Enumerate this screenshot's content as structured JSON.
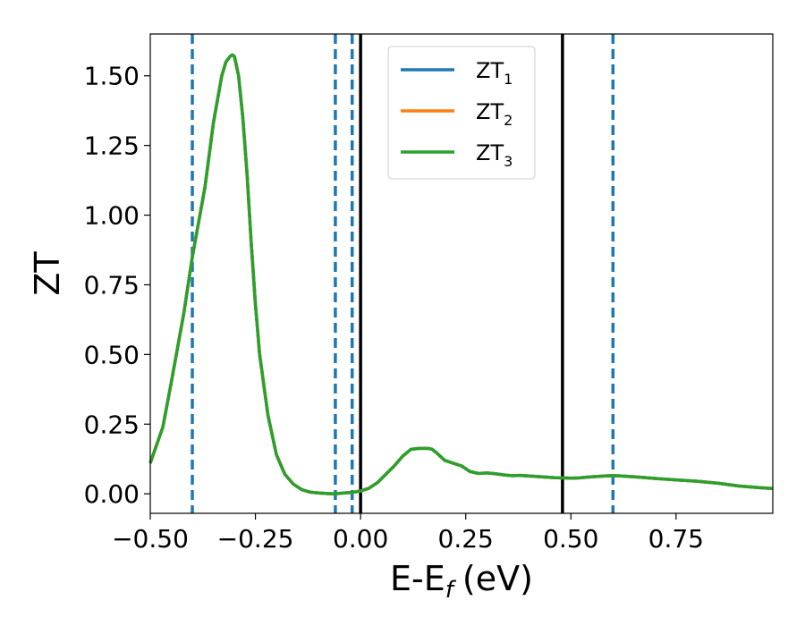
{
  "chart_data": {
    "type": "line",
    "title": "",
    "xlabel": "E-E",
    "xlabel_sub": "f",
    "xlabel_unit": "(eV)",
    "ylabel": "ZT",
    "xlim": [
      -0.5,
      0.98
    ],
    "ylim": [
      -0.07,
      1.65
    ],
    "xticks": [
      -0.5,
      -0.25,
      0.0,
      0.25,
      0.5,
      0.75
    ],
    "xtick_labels": [
      "−0.50",
      "−0.25",
      "0.00",
      "0.25",
      "0.50",
      "0.75"
    ],
    "yticks": [
      0.0,
      0.25,
      0.5,
      0.75,
      1.0,
      1.25,
      1.5
    ],
    "ytick_labels": [
      "0.00",
      "0.25",
      "0.50",
      "0.75",
      "1.00",
      "1.25",
      "1.50"
    ],
    "grid": false,
    "legend_position": "top-center",
    "vlines": [
      {
        "x": -0.4,
        "style": "dashed",
        "color": "#1f77b4"
      },
      {
        "x": -0.06,
        "style": "dashed",
        "color": "#1f77b4"
      },
      {
        "x": -0.02,
        "style": "dashed",
        "color": "#1f77b4"
      },
      {
        "x": 0.6,
        "style": "dashed",
        "color": "#1f77b4"
      },
      {
        "x": 0.0,
        "style": "solid",
        "color": "#000000"
      },
      {
        "x": 0.48,
        "style": "solid",
        "color": "#000000"
      }
    ],
    "x": [
      -0.5,
      -0.47,
      -0.45,
      -0.42,
      -0.4,
      -0.37,
      -0.35,
      -0.33,
      -0.32,
      -0.31,
      -0.305,
      -0.3,
      -0.29,
      -0.28,
      -0.27,
      -0.26,
      -0.25,
      -0.24,
      -0.22,
      -0.2,
      -0.18,
      -0.16,
      -0.14,
      -0.12,
      -0.1,
      -0.08,
      -0.06,
      -0.04,
      -0.02,
      0.0,
      0.02,
      0.04,
      0.06,
      0.08,
      0.1,
      0.12,
      0.14,
      0.16,
      0.17,
      0.18,
      0.2,
      0.22,
      0.24,
      0.26,
      0.28,
      0.3,
      0.32,
      0.34,
      0.36,
      0.38,
      0.4,
      0.42,
      0.44,
      0.46,
      0.48,
      0.5,
      0.52,
      0.54,
      0.56,
      0.58,
      0.6,
      0.62,
      0.64,
      0.66,
      0.7,
      0.75,
      0.8,
      0.85,
      0.9,
      0.95,
      0.98
    ],
    "series": [
      {
        "name": "ZT",
        "sub": "1",
        "color": "#1f77b4",
        "values": [
          0.11,
          0.24,
          0.4,
          0.65,
          0.85,
          1.1,
          1.33,
          1.5,
          1.55,
          1.57,
          1.575,
          1.57,
          1.5,
          1.35,
          1.15,
          0.9,
          0.68,
          0.5,
          0.28,
          0.14,
          0.07,
          0.035,
          0.015,
          0.006,
          0.003,
          0.001,
          0.0,
          0.003,
          0.005,
          0.01,
          0.02,
          0.04,
          0.07,
          0.1,
          0.135,
          0.16,
          0.163,
          0.163,
          0.16,
          0.148,
          0.12,
          0.11,
          0.1,
          0.08,
          0.073,
          0.075,
          0.072,
          0.068,
          0.065,
          0.066,
          0.064,
          0.062,
          0.06,
          0.058,
          0.057,
          0.056,
          0.057,
          0.06,
          0.062,
          0.064,
          0.065,
          0.064,
          0.062,
          0.06,
          0.055,
          0.05,
          0.045,
          0.038,
          0.028,
          0.022,
          0.019
        ]
      },
      {
        "name": "ZT",
        "sub": "2",
        "color": "#ff7f0e",
        "values": [
          0.11,
          0.24,
          0.4,
          0.65,
          0.85,
          1.1,
          1.33,
          1.5,
          1.55,
          1.57,
          1.575,
          1.57,
          1.5,
          1.35,
          1.15,
          0.9,
          0.68,
          0.5,
          0.28,
          0.14,
          0.07,
          0.035,
          0.015,
          0.006,
          0.003,
          0.001,
          0.0,
          0.003,
          0.005,
          0.01,
          0.02,
          0.04,
          0.07,
          0.1,
          0.135,
          0.16,
          0.163,
          0.163,
          0.16,
          0.148,
          0.12,
          0.11,
          0.1,
          0.08,
          0.073,
          0.075,
          0.072,
          0.068,
          0.065,
          0.066,
          0.064,
          0.062,
          0.06,
          0.058,
          0.057,
          0.056,
          0.057,
          0.06,
          0.062,
          0.064,
          0.065,
          0.064,
          0.062,
          0.06,
          0.055,
          0.05,
          0.045,
          0.038,
          0.028,
          0.022,
          0.019
        ]
      },
      {
        "name": "ZT",
        "sub": "3",
        "color": "#2ca02c",
        "values": [
          0.11,
          0.24,
          0.4,
          0.65,
          0.85,
          1.1,
          1.33,
          1.5,
          1.55,
          1.57,
          1.575,
          1.57,
          1.5,
          1.35,
          1.15,
          0.9,
          0.68,
          0.5,
          0.28,
          0.14,
          0.07,
          0.035,
          0.015,
          0.006,
          0.003,
          0.001,
          0.0,
          0.003,
          0.005,
          0.01,
          0.02,
          0.04,
          0.07,
          0.1,
          0.135,
          0.16,
          0.163,
          0.163,
          0.16,
          0.148,
          0.12,
          0.11,
          0.1,
          0.08,
          0.073,
          0.075,
          0.072,
          0.068,
          0.065,
          0.066,
          0.064,
          0.062,
          0.06,
          0.058,
          0.057,
          0.056,
          0.057,
          0.06,
          0.062,
          0.064,
          0.065,
          0.064,
          0.062,
          0.06,
          0.055,
          0.05,
          0.045,
          0.038,
          0.028,
          0.022,
          0.019
        ]
      }
    ]
  }
}
